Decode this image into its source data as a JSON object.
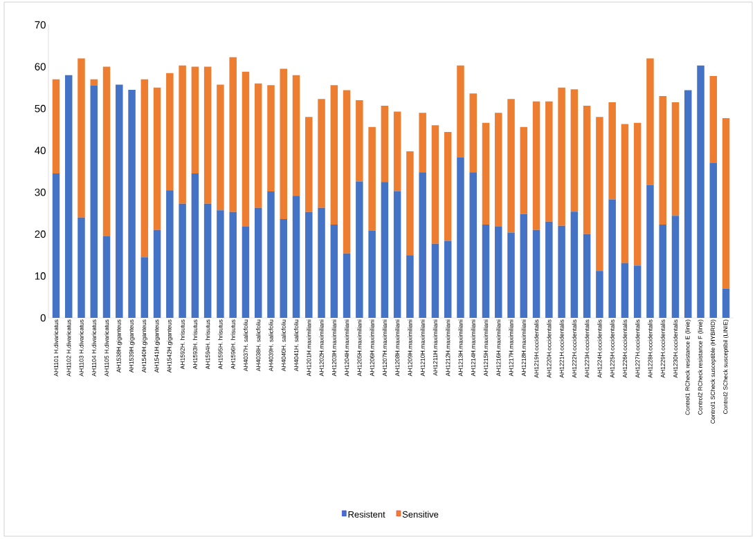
{
  "chart_data": {
    "type": "bar",
    "stacked": true,
    "categories": [
      "AH1101  H.divaricatus",
      "AH1102 H.divaricatus",
      "AH1103 H.divaricatus",
      "AH1104 H.divaricatus",
      "AH1105 H.divaricatus",
      "AH1538H.giganteus",
      "AH1539H.giganteus",
      "AH1540H.giganteus",
      "AH1541H.giganteus",
      "AH1542H.giganteus",
      "AH1592H. hrisutus",
      "AH1593H. hrisutus",
      "AH1594H. hrisutus",
      "AH1595H. hrisutus",
      "AH1596H. hrisutus",
      "AH4037H. salicfoliu",
      "AH4038H. salicfoliu",
      "AH4039H. salicfoliu",
      "AH4040H. salicfoliu",
      "AH4041H. salicfoliu",
      "AH1201H.maximiliani",
      "AH1202H.maximiliani",
      "AH1203H.maximiliani",
      "AH1204H.maximiliani",
      "AH1205H.maximiliani",
      "AH1206H.maximiliani",
      "AH1207H.maximiliani",
      "AH1208H.maximiliani",
      "AH1209H.maximiliani",
      "AH1210H.maximiliani",
      "AH1211H.maximiliani",
      "AH1212H.maximiliani",
      "AH1213H.maximiliani",
      "AH1214H.maximiliani",
      "AH1215H.maximiliani",
      "AH1216H.maximiliani",
      "AH1217H.maximiliani",
      "AH1218H.maximiliani",
      "AH1219H.occidentalis",
      "AH1220H.occidentalis",
      "AH1221H.occidentalis",
      "AH1222H.occidentalis",
      "AH1223H.occidentalis",
      "AH1224H.occidentalis",
      "AH1225H.occidentalis",
      "AH1226H.occidentalis",
      "AH1227H.occidentalis",
      "AH1228H.occidentalis",
      "AH1229H.occidentalis",
      "AH1230H.occidentalis",
      "Control1 RCheck resistance  E (linie)",
      "Control2 RCheck resistance  F (linie)",
      "Control1 SCheck susceptible (HYBRID)",
      "Control2 SCheck susceptibil (LINIE)"
    ],
    "series": [
      {
        "name": "Resistent",
        "color": "#4472c4",
        "values": [
          34.5,
          58,
          24,
          55.5,
          19.5,
          55.7,
          54.5,
          14.5,
          21,
          30.5,
          27.3,
          34.5,
          27.3,
          25.7,
          25.3,
          21.8,
          26.3,
          30.2,
          23.6,
          29.2,
          25.3,
          26.3,
          22.3,
          15.4,
          32.6,
          20.9,
          32.5,
          30.3,
          15,
          34.8,
          17.7,
          18.4,
          38.4,
          34.8,
          22.3,
          21.8,
          20.4,
          24.8,
          21,
          23,
          22,
          25.4,
          20,
          11.2,
          28.3,
          13.1,
          12.5,
          31.8,
          22.3,
          24.4,
          54.4,
          60.3,
          37,
          7
        ]
      },
      {
        "name": "Sensitive",
        "color": "#ed7d31",
        "values": [
          22.5,
          0,
          38,
          1.5,
          40.5,
          0,
          0,
          42.5,
          34,
          28,
          33,
          25.5,
          32.7,
          30,
          37,
          37,
          29.7,
          25.4,
          35.9,
          28.8,
          22.7,
          26,
          33.3,
          39,
          19.4,
          24.7,
          18.2,
          19,
          24.8,
          14.2,
          28.3,
          26,
          21.9,
          18.8,
          24.3,
          27.2,
          31.9,
          20.8,
          30.7,
          28.7,
          33,
          29.2,
          30.7,
          36.8,
          23.2,
          33.2,
          34.1,
          30.2,
          30.7,
          27.1,
          0,
          0,
          20.8,
          40.7
        ]
      }
    ],
    "ylim": [
      0,
      70
    ],
    "yticks": [
      0,
      10,
      20,
      30,
      40,
      50,
      60,
      70
    ],
    "grid": false,
    "legend": "bottom"
  }
}
